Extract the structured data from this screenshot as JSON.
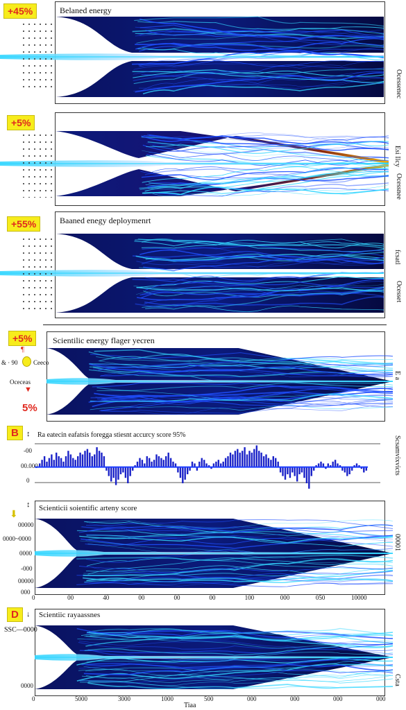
{
  "colors": {
    "badge_bg": "#f7ec1c",
    "badge_text": "#e0281e",
    "stream_dark": "#03072a",
    "stream_blue": "#1f4fff",
    "stream_cyan": "#33d6ff",
    "bar_blue": "#1a22c8",
    "hot_orange": "#f3b20c"
  },
  "panels": [
    {
      "badge": "+45%",
      "title": "Belaned energy",
      "side_label": "Ocessenec",
      "right_marks": ""
    },
    {
      "badge": "+5%",
      "title": "",
      "side_label": "Ocessnee",
      "right_marks": "Esi  Ilcy"
    },
    {
      "badge": "+55%",
      "title": "Baaned enegy deploymenrt",
      "side_label": "Ocesset",
      "right_marks": "fcsatl"
    },
    {
      "badge": "+5%",
      "title": "Scientilic energy flager yecren",
      "side_label": "",
      "right_marks": "E a"
    }
  ],
  "panel4_left": {
    "top_marks": "¶",
    "left_text": "& · 90",
    "right_text": "Ceeco",
    "lower_text": "Oceceas",
    "pct": "5%"
  },
  "panel_b": {
    "letter": "B",
    "title": "Ra eatecin eafatsis foregga   stiesnt accurcy score 95%",
    "side_label": "Scsamvixvicts",
    "y_ticks": [
      "-00",
      "00.000",
      "0"
    ]
  },
  "panel_c": {
    "title": "Scienticii soientific arteny score",
    "y_ticks": [
      "00000",
      "0000~0000",
      "0000",
      "-000",
      "00000",
      "000"
    ],
    "x_ticks": [
      "0",
      "00",
      "40",
      "00",
      "00",
      "00",
      "100",
      "000",
      "050",
      "10000"
    ],
    "side_label": "00001"
  },
  "panel_d": {
    "letter": "D",
    "title": "Scientiic rayaassnes",
    "y_ticks": [
      "SSC—0000",
      "0000"
    ],
    "x_ticks": [
      "0",
      "5000",
      "3000",
      "1000",
      "500",
      "000",
      "000",
      "000",
      "000"
    ],
    "xlabel": "Tiaa",
    "side_label": "Csta"
  },
  "chart_data": [
    {
      "type": "area",
      "title": "Belaned energy",
      "annotations": [
        "+45%"
      ]
    },
    {
      "type": "area",
      "title": "",
      "annotations": [
        "+5%"
      ]
    },
    {
      "type": "area",
      "title": "Baaned enegy deploymenrt",
      "annotations": [
        "+55%"
      ]
    },
    {
      "type": "area",
      "title": "Scientilic energy flager yecren",
      "annotations": [
        "+5%",
        "5%"
      ]
    },
    {
      "type": "bar",
      "title": "Ra eatecin eafatsis foregga   stiesnt accurcy score 95%",
      "values": [
        2,
        4,
        6,
        3,
        5,
        7,
        4,
        8,
        6,
        5,
        3,
        6,
        9,
        7,
        5,
        4,
        6,
        8,
        7,
        9,
        10,
        8,
        6,
        7,
        11,
        9,
        8,
        6,
        -2,
        -5,
        -8,
        -6,
        -10,
        -7,
        -4,
        -3,
        -6,
        -9,
        -5,
        -2,
        1,
        3,
        5,
        4,
        2,
        6,
        5,
        3,
        4,
        7,
        6,
        5,
        4,
        6,
        8,
        5,
        3,
        2,
        -3,
        -6,
        -9,
        -7,
        -4,
        -2,
        3,
        2,
        -2,
        3,
        5,
        4,
        2,
        1,
        -1,
        2,
        3,
        4,
        2,
        3,
        5,
        6,
        8,
        7,
        9,
        10,
        8,
        9,
        11,
        7,
        9,
        8,
        10,
        12,
        9,
        8,
        6,
        7,
        5,
        4,
        6,
        5,
        3,
        -3,
        -5,
        -7,
        -4,
        -6,
        -3,
        -5,
        -8,
        -4,
        -3,
        -6,
        -9,
        -12,
        -5,
        -2,
        1,
        2,
        3,
        2,
        -1,
        2,
        1,
        3,
        4,
        2,
        1,
        -2,
        -3,
        -5,
        -4,
        -2,
        1,
        2,
        1,
        -1,
        -3,
        -2
      ],
      "ylim": [
        -14,
        16
      ]
    },
    {
      "type": "area",
      "title": "Scienticii soientific arteny score",
      "x_tick_labels": [
        "0",
        "00",
        "40",
        "00",
        "00",
        "00",
        "100",
        "000",
        "050",
        "10000"
      ]
    },
    {
      "type": "area",
      "title": "Scientiic rayaassnes",
      "x_tick_labels": [
        "0",
        "5000",
        "3000",
        "1000",
        "500",
        "000",
        "000",
        "000",
        "000"
      ],
      "xlabel": "Tiaa"
    }
  ]
}
